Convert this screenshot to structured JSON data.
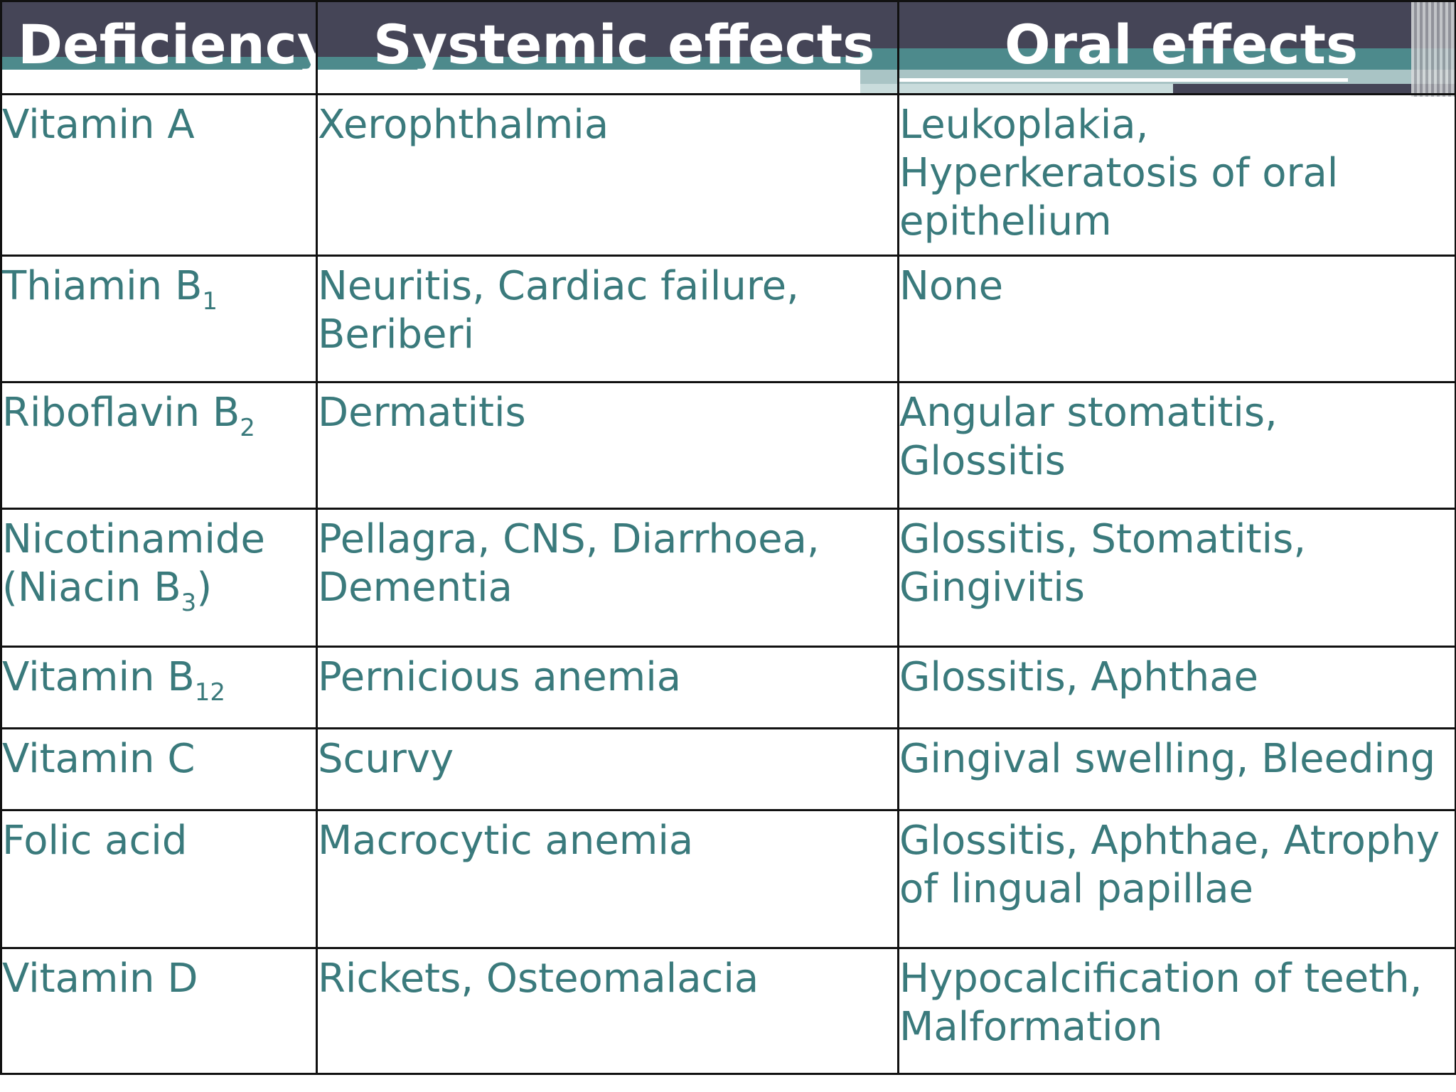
{
  "table": {
    "headers": {
      "deficiency": "Deficiency",
      "systemic": "Systemic effects",
      "oral": "Oral effects"
    },
    "rows": [
      {
        "deficiency": {
          "name": "Vitamin A",
          "sub": ""
        },
        "systemic": [
          "Xerophthalmia"
        ],
        "oral": [
          "Leukoplakia,",
          "Hyperkeratosis of oral",
          "epithelium"
        ]
      },
      {
        "deficiency": {
          "name": "Thiamin B",
          "sub": "1"
        },
        "systemic": [
          "Neuritis, Cardiac failure,",
          "Beriberi"
        ],
        "oral": [
          "None"
        ]
      },
      {
        "deficiency": {
          "name": "Riboflavin B",
          "sub": "2"
        },
        "systemic": [
          "Dermatitis"
        ],
        "oral": [
          "Angular stomatitis,",
          "Glossitis"
        ]
      },
      {
        "deficiency": {
          "name": "Nicotinamide",
          "line2": "(Niacin B",
          "sub": "3",
          "after": ")"
        },
        "systemic": [
          "Pellagra, CNS, Diarrhoea,",
          "Dementia"
        ],
        "oral": [
          "Glossitis, Stomatitis,",
          "Gingivitis"
        ]
      },
      {
        "deficiency": {
          "name": "Vitamin B",
          "sub": "12"
        },
        "systemic": [
          "Pernicious anemia"
        ],
        "oral": [
          "Glossitis, Aphthae"
        ]
      },
      {
        "deficiency": {
          "name": "Vitamin C",
          "sub": ""
        },
        "systemic": [
          "Scurvy"
        ],
        "oral": [
          "Gingival swelling, Bleeding"
        ]
      },
      {
        "deficiency": {
          "name": "Folic acid",
          "sub": ""
        },
        "systemic": [
          "Macrocytic anemia"
        ],
        "oral": [
          "Glossitis, Aphthae, Atrophy",
          "of lingual papillae"
        ]
      },
      {
        "deficiency": {
          "name": "Vitamin D",
          "sub": ""
        },
        "systemic": [
          "Rickets, Osteomalacia"
        ],
        "oral": [
          "Hypocalcification of teeth,",
          "Malformation"
        ]
      }
    ]
  }
}
